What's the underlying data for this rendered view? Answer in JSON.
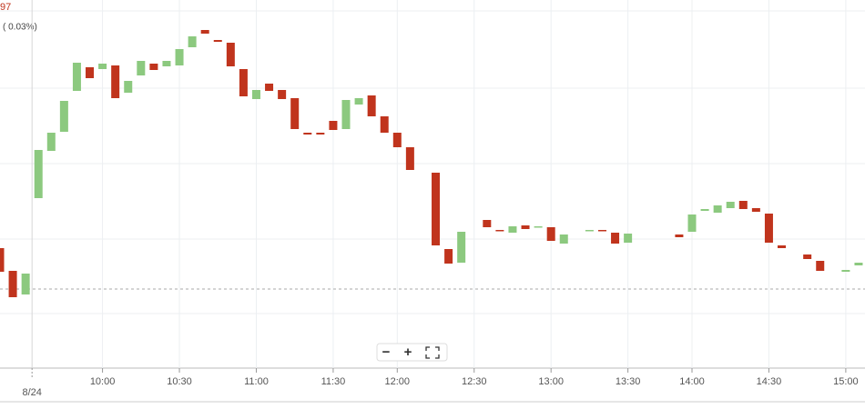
{
  "chart_data": {
    "type": "candlestick",
    "price_fragment": "97",
    "change": "( 0.03%)",
    "x": [
      0,
      1,
      2,
      3,
      4,
      5,
      6,
      7,
      8,
      9,
      10,
      11,
      12,
      13,
      14,
      15,
      16,
      17,
      18,
      19,
      20,
      21,
      22,
      23,
      24,
      25,
      26,
      27,
      28,
      29,
      30,
      31,
      32,
      34,
      35,
      36,
      38,
      39,
      40,
      41,
      42,
      43,
      44,
      46,
      47,
      48,
      49,
      53,
      54,
      55,
      56,
      57,
      58,
      59,
      60,
      61,
      63,
      64,
      66,
      67
    ],
    "open": [
      177,
      152,
      126,
      232,
      284,
      305,
      350,
      376,
      374,
      378,
      348,
      367,
      380,
      377,
      378,
      398,
      417,
      406,
      403,
      374,
      341,
      358,
      351,
      342,
      304,
      304,
      317,
      308,
      335,
      345,
      322,
      304,
      288,
      260,
      176,
      161,
      208,
      197,
      194,
      202,
      200,
      200,
      182,
      196,
      197,
      194,
      183,
      192,
      195,
      218,
      216,
      221,
      229,
      221,
      215,
      180,
      170,
      163,
      151,
      158
    ],
    "close": [
      151,
      123,
      149,
      285,
      304,
      339,
      381,
      364,
      380,
      342,
      361,
      383,
      373,
      383,
      396,
      410,
      413,
      404,
      377,
      344,
      351,
      350,
      341,
      308,
      302,
      302,
      307,
      340,
      342,
      322,
      304,
      288,
      263,
      180,
      160,
      195,
      200,
      196,
      201,
      198,
      201,
      185,
      192,
      197,
      196,
      182,
      193,
      189,
      214,
      220,
      224,
      228,
      220,
      217,
      183,
      177,
      165,
      152,
      153,
      161
    ],
    "up_color": "#8cc97f",
    "down_color": "#c0341d",
    "reference_line": 132,
    "xlim": [
      0,
      67.5
    ],
    "ylim": [
      45,
      450
    ],
    "xticks": [
      {
        "value": 2.5,
        "label": "8/24"
      },
      {
        "value": 8,
        "label": "10:00"
      },
      {
        "value": 14,
        "label": "10:30"
      },
      {
        "value": 20,
        "label": "11:00"
      },
      {
        "value": 26,
        "label": "11:30"
      },
      {
        "value": 31,
        "label": "12:00"
      },
      {
        "value": 37,
        "label": "12:30"
      },
      {
        "value": 43,
        "label": "13:00"
      },
      {
        "value": 49,
        "label": "13:30"
      },
      {
        "value": 54,
        "label": "14:00"
      },
      {
        "value": 60,
        "label": "14:30"
      },
      {
        "value": 66,
        "label": "15:00"
      }
    ],
    "grid": true
  },
  "controls": {
    "zoom_out": "−",
    "zoom_in": "+"
  }
}
